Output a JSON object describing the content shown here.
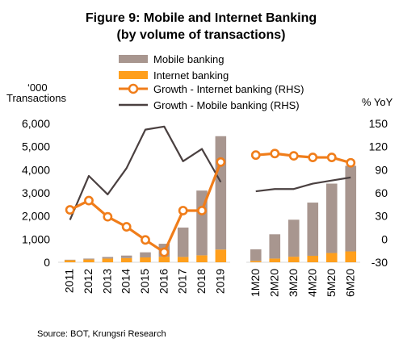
{
  "chart_data": {
    "type": "bar",
    "title": "Figure 9: Mobile and Internet Banking",
    "subtitle": "(by volume of transactions)",
    "y_left_label_line1": "‘000",
    "y_left_label_line2": "Transactions",
    "y_right_label": "% YoY",
    "source": "Source: BOT, Krungsri Research",
    "y_left": {
      "min": 0,
      "max": 6000,
      "ticks": [
        0,
        1000,
        2000,
        3000,
        4000,
        5000,
        6000
      ],
      "tick_labels": [
        "0",
        "1,000",
        "2,000",
        "3,000",
        "4,000",
        "5,000",
        "6,000"
      ]
    },
    "y_right": {
      "min": -30,
      "max": 150,
      "ticks": [
        -30,
        0,
        30,
        60,
        90,
        120,
        150
      ],
      "tick_labels": [
        "-30",
        "0",
        "30",
        "60",
        "90",
        "120",
        "150"
      ]
    },
    "categories_annual": [
      "2011",
      "2012",
      "2013",
      "2014",
      "2015",
      "2016",
      "2017",
      "2018",
      "2019"
    ],
    "categories_monthly": [
      "1M20",
      "2M20",
      "3M20",
      "4M20",
      "5M20",
      "6M20"
    ],
    "series": [
      {
        "name": "Mobile banking",
        "kind": "bar",
        "color": "#a8968f",
        "annual": [
          20,
          40,
          70,
          110,
          220,
          560,
          1270,
          2800,
          4900
        ],
        "monthly": [
          500,
          1050,
          1600,
          2300,
          3000,
          3700
        ]
      },
      {
        "name": "Internet banking",
        "kind": "bar",
        "color": "#ff9f1c",
        "annual": [
          90,
          120,
          160,
          180,
          210,
          240,
          230,
          300,
          550
        ],
        "monthly": [
          60,
          160,
          240,
          280,
          400,
          470
        ]
      },
      {
        "name": "Growth - Internet banking (RHS)",
        "kind": "line",
        "axis": "right",
        "color": "#f07d1a",
        "annual": [
          38,
          50,
          29,
          16,
          -1,
          -17,
          37,
          37,
          100
        ],
        "monthly": [
          109,
          111,
          108,
          106,
          106,
          99
        ]
      },
      {
        "name": "Growth - Mobile banking (RHS)",
        "kind": "line",
        "axis": "right",
        "color": "#4a4040",
        "annual": [
          25,
          82,
          58,
          92,
          142,
          146,
          101,
          117,
          74
        ],
        "monthly": [
          62,
          65,
          65,
          72,
          76,
          80
        ]
      }
    ],
    "legend_position": "top-center",
    "grid": false
  }
}
